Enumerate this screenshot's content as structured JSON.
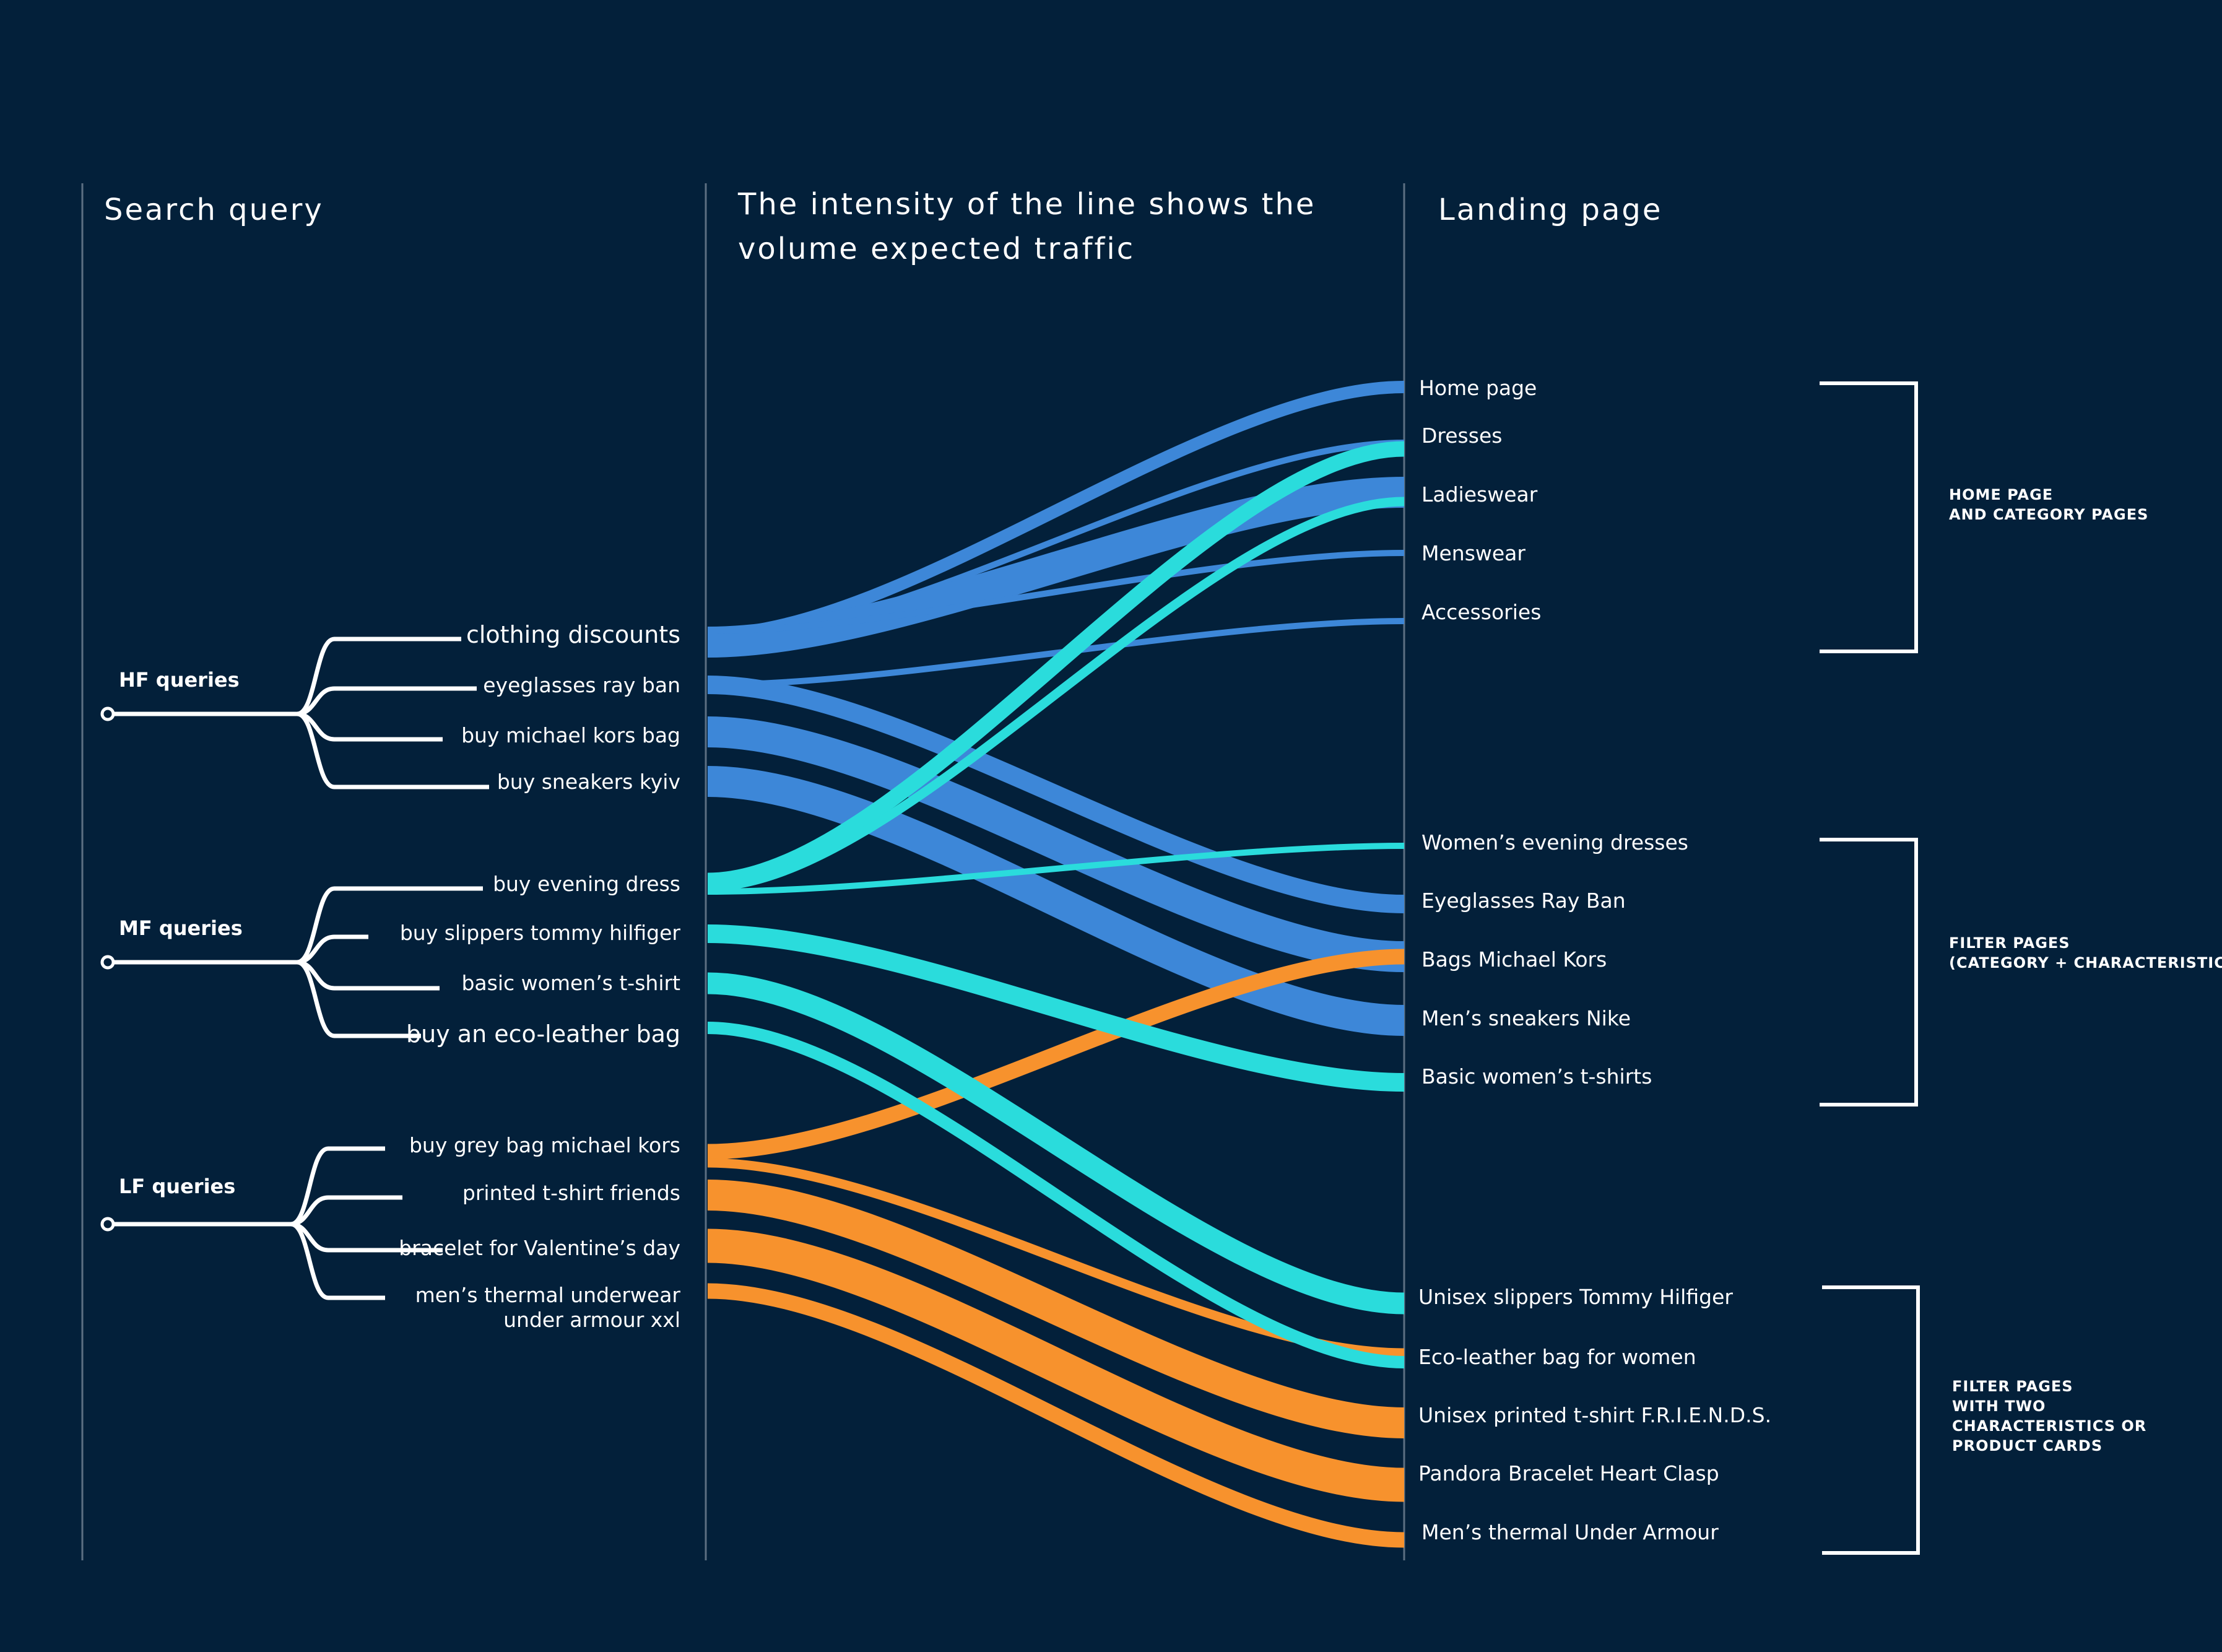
{
  "headers": {
    "search_query": "Search query",
    "intensity_line1": "The intensity of the line shows the",
    "intensity_line2": "volume expected traffic",
    "landing_page": "Landing page"
  },
  "groups": [
    {
      "label": "HF queries",
      "queries": [
        "clothing discounts",
        "eyeglasses ray ban",
        "buy michael kors bag",
        "buy sneakers kyiv"
      ]
    },
    {
      "label": "MF queries",
      "queries": [
        "buy evening dress",
        "buy slippers tommy hilfiger",
        "basic women’s t-shirt",
        "buy an eco-leather bag"
      ]
    },
    {
      "label": "LF queries",
      "queries": [
        "buy grey bag michael kors",
        "printed t-shirt friends",
        "bracelet for Valentine’s day",
        "men’s thermal underwear",
        "under armour xxl"
      ]
    }
  ],
  "landing_sections": [
    {
      "label_lines": [
        "HOME PAGE",
        "AND CATEGORY PAGES"
      ],
      "pages": [
        "Home page",
        "Dresses",
        "Ladieswear",
        "Menswear",
        "Accessories"
      ]
    },
    {
      "label_lines": [
        "FILTER PAGES",
        "(CATEGORY + CHARACTERISTICS)"
      ],
      "pages": [
        "Women’s evening dresses",
        "Eyeglasses Ray Ban",
        "Bags Michael Kors",
        "Men’s sneakers Nike",
        "Basic women’s t-shirts"
      ]
    },
    {
      "label_lines": [
        "FILTER PAGES",
        "WITH TWO",
        "CHARACTERISTICS OR",
        "PRODUCT CARDS"
      ],
      "pages": [
        "Unisex slippers Tommy Hilfiger",
        "Eco-leather bag for women",
        "Unisex printed t-shirt F.R.I.E.N.D.S.",
        "Pandora Bracelet Heart Clasp",
        "Men’s thermal Under Armour"
      ]
    }
  ],
  "colors": {
    "background": "#03203a",
    "hf_flow": "#3d87d8",
    "mf_flow": "#2adcdc",
    "lf_flow": "#f7922d"
  },
  "flows": [
    {
      "from": "clothing discounts",
      "to": "Home page",
      "intensity": 4,
      "tier": "hf"
    },
    {
      "from": "clothing discounts",
      "to": "Dresses",
      "intensity": 2,
      "tier": "hf"
    },
    {
      "from": "clothing discounts",
      "to": "Ladieswear",
      "intensity": 10,
      "tier": "hf"
    },
    {
      "from": "clothing discounts",
      "to": "Menswear",
      "intensity": 2,
      "tier": "hf"
    },
    {
      "from": "eyeglasses ray ban",
      "to": "Accessories",
      "intensity": 2,
      "tier": "hf"
    },
    {
      "from": "eyeglasses ray ban",
      "to": "Eyeglasses Ray Ban",
      "intensity": 6,
      "tier": "hf"
    },
    {
      "from": "buy michael kors bag",
      "to": "Bags Michael Kors",
      "intensity": 10,
      "tier": "hf"
    },
    {
      "from": "buy sneakers kyiv",
      "to": "Men’s sneakers Nike",
      "intensity": 10,
      "tier": "hf"
    },
    {
      "from": "buy evening dress",
      "to": "Dresses",
      "intensity": 5,
      "tier": "mf"
    },
    {
      "from": "buy evening dress",
      "to": "Ladieswear",
      "intensity": 3,
      "tier": "mf"
    },
    {
      "from": "buy evening dress",
      "to": "Women’s evening dresses",
      "intensity": 2,
      "tier": "mf"
    },
    {
      "from": "buy slippers tommy hilfiger",
      "to": "Basic women’s t-shirts",
      "intensity": 6,
      "tier": "mf"
    },
    {
      "from": "basic women’s t-shirt",
      "to": "Unisex slippers Tommy Hilfiger",
      "intensity": 7,
      "tier": "mf"
    },
    {
      "from": "buy an eco-leather bag",
      "to": "Eco-leather bag for women",
      "intensity": 4,
      "tier": "mf"
    },
    {
      "from": "buy grey bag michael kors",
      "to": "Bags Michael Kors",
      "intensity": 5,
      "tier": "lf"
    },
    {
      "from": "buy grey bag michael kors",
      "to": "Eco-leather bag for women",
      "intensity": 3,
      "tier": "lf"
    },
    {
      "from": "printed t-shirt friends",
      "to": "Unisex printed t-shirt F.R.I.E.N.D.S.",
      "intensity": 10,
      "tier": "lf"
    },
    {
      "from": "bracelet for Valentine’s day",
      "to": "Pandora Bracelet Heart Clasp",
      "intensity": 11,
      "tier": "lf"
    },
    {
      "from": "men’s thermal underwear",
      "to": "Men’s thermal Under Armour",
      "intensity": 5,
      "tier": "lf"
    }
  ]
}
